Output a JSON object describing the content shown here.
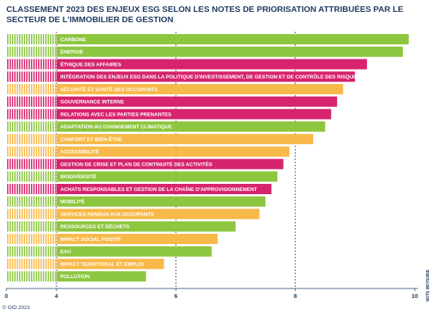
{
  "title": "CLASSEMENT 2023 DES ENJEUX ESG SELON LES NOTES DE PRIORISATION ATTRIBUÉES PAR LE SECTEUR DE L'IMMOBILIER DE GESTION",
  "footer": "© OID 2023",
  "colors": {
    "green": "#8dc63f",
    "magenta": "#d6246e",
    "orange": "#f7b94a",
    "axis": "#1e3a5f",
    "grid": "#333333"
  },
  "chart_data": {
    "type": "bar",
    "orientation": "horizontal",
    "xlim": [
      0,
      10
    ],
    "xticks": [
      0,
      4,
      6,
      8,
      10
    ],
    "xlabel": "NOTE MOYENNE",
    "grid": true,
    "categories": [
      "CARBONE",
      "ÉNERGIE",
      "ÉTHIQUE DES AFFAIRES",
      "INTÉGRATION DES ENJEUX ESG DANS LA POLITIQUE D'INVESTISSEMENT, DE GESTION ET DE CONTRÔLE DES RISQUES",
      "SÉCURITÉ ET SANTÉ DES OCCUPANTS",
      "GOUVERNANCE INTERNE",
      "RELATIONS AVEC LES PARTIES PRENANTES",
      "ADAPTATION AU CHANGEMENT CLIMATIQUE",
      "CONFORT ET BIEN-ÊTRE",
      "ACCESSIBILITÉ",
      "GESTION DE CRISE ET PLAN DE CONTINUITÉ DES ACTIVITÉS",
      "BIODIVERSITÉ",
      "ACHATS RESPONSABLES ET GESTION DE LA CHAÎNE D'APPROVISIONNEMENT",
      "MOBILITÉ",
      "SERVICES RENDUS AUX OCCUPANTS",
      "RESSOURCES ET DÉCHETS",
      "IMPACT SOCIAL POSITIF",
      "EAU",
      "IMPACT TERRITORIAL ET EMPLOI",
      "POLLUTION"
    ],
    "values": [
      9.9,
      9.8,
      9.2,
      9.0,
      8.8,
      8.7,
      8.6,
      8.5,
      8.3,
      7.9,
      7.8,
      7.7,
      7.6,
      7.5,
      7.4,
      7.0,
      6.7,
      6.6,
      5.8,
      5.5
    ],
    "colors": [
      "green",
      "green",
      "magenta",
      "magenta",
      "orange",
      "magenta",
      "magenta",
      "green",
      "orange",
      "orange",
      "magenta",
      "green",
      "magenta",
      "green",
      "orange",
      "green",
      "orange",
      "green",
      "orange",
      "green"
    ]
  }
}
